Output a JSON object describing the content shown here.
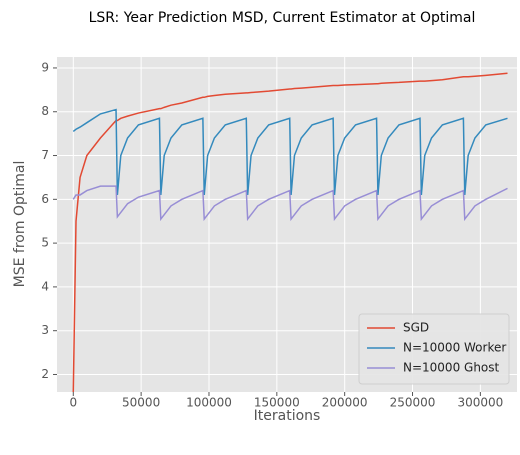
{
  "chart_data": {
    "type": "line",
    "title": "LSR: Year Prediction MSD, Current Estimator at Optimal",
    "x_label": "Iterations",
    "y_label": "MSE from Optimal",
    "x": [
      0,
      2000,
      5000,
      10000,
      20000,
      31500,
      32500,
      35000,
      40000,
      48000,
      63500,
      64500,
      67000,
      72000,
      80000,
      95500,
      96500,
      99000,
      104000,
      112000,
      127500,
      128500,
      131000,
      136000,
      144000,
      159500,
      160500,
      163000,
      168000,
      176000,
      191500,
      192500,
      195000,
      200000,
      208000,
      223500,
      224500,
      227000,
      232000,
      240000,
      255500,
      256500,
      259000,
      264000,
      272000,
      287500,
      288500,
      291000,
      296000,
      304000,
      320000
    ],
    "series": [
      {
        "name": "SGD",
        "color": "#e24a33",
        "values": [
          1.6,
          5.5,
          6.5,
          7.0,
          7.4,
          7.8,
          7.8,
          7.85,
          7.9,
          7.97,
          8.07,
          8.07,
          8.1,
          8.15,
          8.2,
          8.33,
          8.33,
          8.35,
          8.37,
          8.4,
          8.43,
          8.43,
          8.44,
          8.45,
          8.47,
          8.52,
          8.52,
          8.53,
          8.54,
          8.56,
          8.6,
          8.6,
          8.6,
          8.61,
          8.62,
          8.64,
          8.64,
          8.65,
          8.66,
          8.67,
          8.7,
          8.7,
          8.7,
          8.71,
          8.73,
          8.8,
          8.8,
          8.8,
          8.81,
          8.83,
          8.88
        ]
      },
      {
        "name": "N=10000 Worker",
        "color": "#348abd",
        "values": [
          7.55,
          7.6,
          7.65,
          7.75,
          7.95,
          8.05,
          6.1,
          7.0,
          7.4,
          7.7,
          7.85,
          6.1,
          7.0,
          7.4,
          7.7,
          7.85,
          6.1,
          7.0,
          7.4,
          7.7,
          7.85,
          6.1,
          7.0,
          7.4,
          7.7,
          7.85,
          6.1,
          7.0,
          7.4,
          7.7,
          7.85,
          6.1,
          7.0,
          7.4,
          7.7,
          7.85,
          6.1,
          7.0,
          7.4,
          7.7,
          7.85,
          6.1,
          7.0,
          7.4,
          7.7,
          7.85,
          6.1,
          7.0,
          7.4,
          7.7,
          7.85
        ]
      },
      {
        "name": "N=10000 Ghost",
        "color": "#988ed5",
        "values": [
          6.0,
          6.1,
          6.1,
          6.2,
          6.3,
          6.3,
          5.6,
          5.7,
          5.9,
          6.05,
          6.2,
          5.55,
          5.65,
          5.85,
          6.0,
          6.2,
          5.55,
          5.65,
          5.85,
          6.0,
          6.2,
          5.55,
          5.65,
          5.85,
          6.0,
          6.2,
          5.55,
          5.65,
          5.85,
          6.0,
          6.2,
          5.55,
          5.65,
          5.85,
          6.0,
          6.2,
          5.55,
          5.65,
          5.85,
          6.0,
          6.2,
          5.55,
          5.65,
          5.85,
          6.0,
          6.2,
          5.55,
          5.65,
          5.85,
          6.0,
          6.25
        ]
      }
    ],
    "xlim": [
      -12000,
      327000
    ],
    "ylim": [
      1.6,
      9.25
    ],
    "xticks": [
      0,
      50000,
      100000,
      150000,
      200000,
      250000,
      300000
    ],
    "yticks": [
      2,
      3,
      4,
      5,
      6,
      7,
      8,
      9
    ],
    "grid": true,
    "legend": "lower right"
  }
}
